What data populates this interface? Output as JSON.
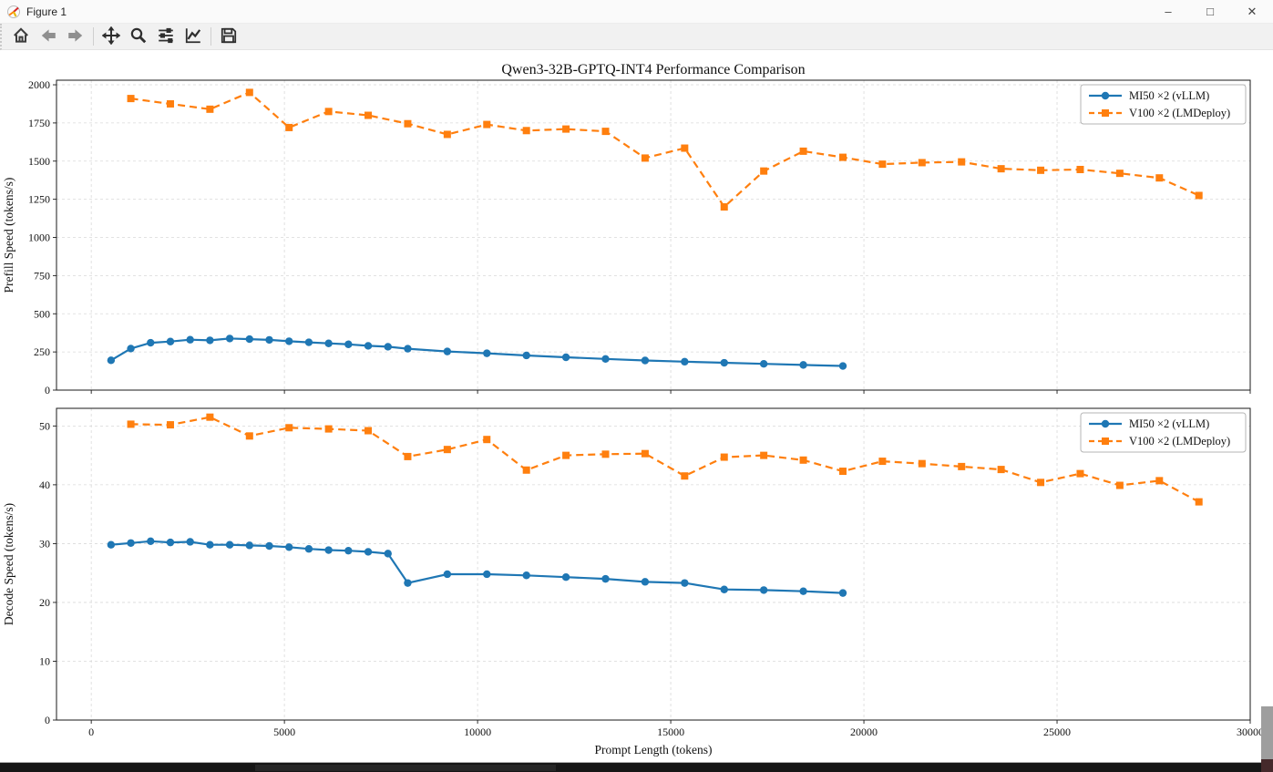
{
  "window": {
    "title": "Figure 1",
    "controls": {
      "minimize": "–",
      "maximize": "□",
      "close": "✕"
    }
  },
  "toolbar": {
    "buttons": [
      {
        "name": "home",
        "icon": "home-icon"
      },
      {
        "name": "back",
        "icon": "arrow-left-icon"
      },
      {
        "name": "forward",
        "icon": "arrow-right-icon"
      },
      {
        "name": "pan",
        "icon": "move-cross-icon"
      },
      {
        "name": "zoom",
        "icon": "magnifier-icon"
      },
      {
        "name": "configure-subplots",
        "icon": "sliders-icon"
      },
      {
        "name": "edit-parameters",
        "icon": "line-chart-icon"
      },
      {
        "name": "save",
        "icon": "floppy-disk-icon"
      }
    ]
  },
  "colors": {
    "mi50": "#1f77b4",
    "v100": "#ff7f0e"
  },
  "chart_data": [
    {
      "type": "line",
      "title": "Qwen3-32B-GPTQ-INT4 Performance Comparison",
      "xlabel": "",
      "ylabel": "Prefill Speed (tokens/s)",
      "xlim": [
        -900,
        30000
      ],
      "ylim": [
        0,
        2030
      ],
      "xticks": [
        0,
        5000,
        10000,
        15000,
        20000,
        25000,
        30000
      ],
      "yticks": [
        0,
        250,
        500,
        750,
        1000,
        1250,
        1500,
        1750,
        2000
      ],
      "grid": true,
      "legend_position": "upper right",
      "series": [
        {
          "name": "MI50 ×2 (vLLM)",
          "color": "#1f77b4",
          "marker": "circle",
          "line": "solid",
          "x": [
            512,
            1024,
            1536,
            2048,
            2560,
            3072,
            3584,
            4096,
            4608,
            5120,
            5632,
            6144,
            6656,
            7168,
            7680,
            8192,
            9216,
            10240,
            11264,
            12288,
            13312,
            14336,
            15360,
            16384,
            17408,
            18432,
            19456
          ],
          "y": [
            195,
            272,
            310,
            318,
            330,
            326,
            338,
            334,
            329,
            320,
            313,
            306,
            300,
            290,
            284,
            271,
            253,
            241,
            227,
            215,
            204,
            194,
            186,
            179,
            172,
            165,
            158
          ]
        },
        {
          "name": "V100 ×2 (LMDeploy)",
          "color": "#ff7f0e",
          "marker": "square",
          "line": "dashed",
          "x": [
            1024,
            2048,
            3072,
            4096,
            5120,
            6144,
            7168,
            8192,
            9216,
            10240,
            11264,
            12288,
            13312,
            14336,
            15360,
            16384,
            17408,
            18432,
            19456,
            20480,
            21504,
            22528,
            23552,
            24576,
            25600,
            26624,
            27648,
            28672
          ],
          "y": [
            1910,
            1875,
            1840,
            1950,
            1720,
            1825,
            1800,
            1745,
            1675,
            1740,
            1700,
            1710,
            1695,
            1520,
            1585,
            1200,
            1435,
            1565,
            1525,
            1480,
            1490,
            1495,
            1450,
            1440,
            1445,
            1420,
            1390,
            1275
          ]
        }
      ]
    },
    {
      "type": "line",
      "title": "",
      "xlabel": "Prompt Length (tokens)",
      "ylabel": "Decode Speed (tokens/s)",
      "xlim": [
        -900,
        30000
      ],
      "ylim": [
        0,
        53
      ],
      "xticks": [
        0,
        5000,
        10000,
        15000,
        20000,
        25000,
        30000
      ],
      "yticks": [
        0,
        10,
        20,
        30,
        40,
        50
      ],
      "grid": true,
      "legend_position": "upper right",
      "series": [
        {
          "name": "MI50 ×2 (vLLM)",
          "color": "#1f77b4",
          "marker": "circle",
          "line": "solid",
          "x": [
            512,
            1024,
            1536,
            2048,
            2560,
            3072,
            3584,
            4096,
            4608,
            5120,
            5632,
            6144,
            6656,
            7168,
            7680,
            8192,
            9216,
            10240,
            11264,
            12288,
            13312,
            14336,
            15360,
            16384,
            17408,
            18432,
            19456
          ],
          "y": [
            29.8,
            30.1,
            30.4,
            30.2,
            30.3,
            29.8,
            29.8,
            29.7,
            29.6,
            29.4,
            29.1,
            28.9,
            28.8,
            28.6,
            28.3,
            23.3,
            24.8,
            24.8,
            24.6,
            24.3,
            24.0,
            23.5,
            23.3,
            22.2,
            22.1,
            21.9,
            21.6
          ]
        },
        {
          "name": "V100 ×2 (LMDeploy)",
          "color": "#ff7f0e",
          "marker": "square",
          "line": "dashed",
          "x": [
            1024,
            2048,
            3072,
            4096,
            5120,
            6144,
            7168,
            8192,
            9216,
            10240,
            11264,
            12288,
            13312,
            14336,
            15360,
            16384,
            17408,
            18432,
            19456,
            20480,
            21504,
            22528,
            23552,
            24576,
            25600,
            26624,
            27648,
            28672
          ],
          "y": [
            50.3,
            50.2,
            51.5,
            48.3,
            49.7,
            49.5,
            49.2,
            44.8,
            46.0,
            47.7,
            42.5,
            45.0,
            45.2,
            45.3,
            41.5,
            44.7,
            45.0,
            44.2,
            42.3,
            44.0,
            43.6,
            43.1,
            42.6,
            40.4,
            41.9,
            39.9,
            40.7,
            37.1
          ]
        }
      ]
    }
  ]
}
